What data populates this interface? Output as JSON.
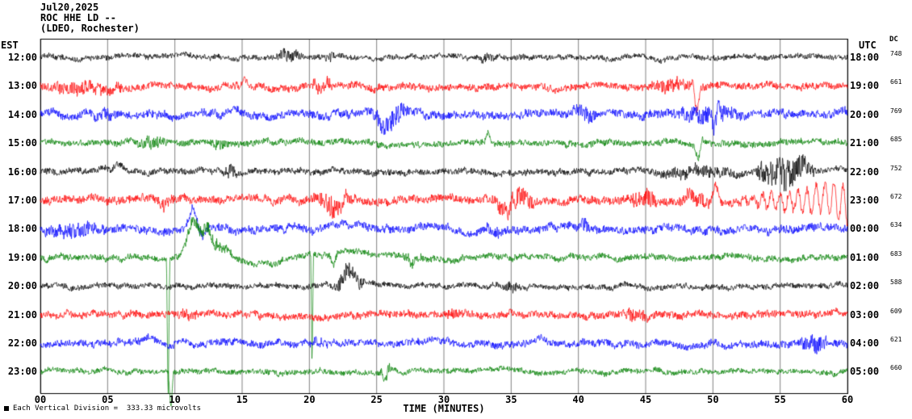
{
  "header": {
    "date": "Jul20,2025",
    "station": "ROC HHE LD --",
    "location": "(LDEO, Rochester)"
  },
  "axes": {
    "left_label": "EST",
    "right_label": "UTC",
    "dc_label": "DC",
    "x_title": "TIME (MINUTES)",
    "x_ticks": [
      "00",
      "05",
      "10",
      "15",
      "20",
      "25",
      "30",
      "35",
      "40",
      "45",
      "50",
      "55",
      "60"
    ]
  },
  "footer": {
    "note": "Each Vertical Division =  333.33 microvolts"
  },
  "chart_data": {
    "type": "line",
    "x_range": [
      0,
      60
    ],
    "x_unit": "minutes",
    "grid": true,
    "grid_color": "#808080",
    "border_color": "#000000",
    "background": "#ffffff",
    "color_cycle": [
      "#000000",
      "#ff0000",
      "#0000ff",
      "#008000"
    ],
    "rows": [
      {
        "est": "12:00",
        "utc": "18:00",
        "dc": "748",
        "color": "#000000",
        "base": 3,
        "bursts": [
          {
            "t0": 17.3,
            "t1": 19.8,
            "amp": 4
          },
          {
            "t0": 21,
            "t1": 22,
            "amp": 2.5
          },
          {
            "t0": 32.5,
            "t1": 34,
            "amp": 3
          }
        ],
        "spikes": [],
        "humps": [],
        "sines": []
      },
      {
        "est": "13:00",
        "utc": "19:00",
        "dc": "661",
        "color": "#ff0000",
        "base": 4,
        "bursts": [
          {
            "t0": 0,
            "t1": 6.5,
            "amp": 4
          },
          {
            "t0": 20,
            "t1": 22,
            "amp": 4
          },
          {
            "t0": 45,
            "t1": 49,
            "amp": 4
          }
        ],
        "spikes": [
          {
            "t": 15.2,
            "amp": 13,
            "w": 0.35
          },
          {
            "t": 48.4,
            "amp": 10,
            "w": 0.3
          },
          {
            "t": 48.8,
            "amp": -30,
            "w": 0.3
          }
        ],
        "humps": [],
        "sines": []
      },
      {
        "est": "14:00",
        "utc": "20:00",
        "dc": "769",
        "color": "#0000ff",
        "base": 4.5,
        "bursts": [
          {
            "t0": 3.5,
            "t1": 6,
            "amp": 3
          },
          {
            "t0": 24.5,
            "t1": 27.5,
            "amp": 8
          },
          {
            "t0": 39.5,
            "t1": 41.5,
            "amp": 5
          },
          {
            "t0": 47,
            "t1": 52.5,
            "amp": 6
          }
        ],
        "spikes": [
          {
            "t": 50.1,
            "amp": -24,
            "w": 0.3
          },
          {
            "t": 50.4,
            "amp": 14,
            "w": 0.3
          }
        ],
        "humps": [],
        "sines": []
      },
      {
        "est": "15:00",
        "utc": "21:00",
        "dc": "685",
        "color": "#008000",
        "base": 3.5,
        "bursts": [
          {
            "t0": 7,
            "t1": 9.5,
            "amp": 4
          },
          {
            "t0": 12.5,
            "t1": 14,
            "amp": 3
          }
        ],
        "spikes": [
          {
            "t": 8,
            "amp": 13,
            "w": 0.25
          },
          {
            "t": 33.3,
            "amp": 14,
            "w": 0.25
          },
          {
            "t": 48.9,
            "amp": -20,
            "w": 0.3
          },
          {
            "t": 49.2,
            "amp": 9,
            "w": 0.3
          }
        ],
        "humps": [],
        "sines": []
      },
      {
        "est": "16:00",
        "utc": "22:00",
        "dc": "752",
        "color": "#000000",
        "base": 3.5,
        "bursts": [
          {
            "t0": 13.5,
            "t1": 14.8,
            "amp": 4
          },
          {
            "t0": 45,
            "t1": 52.5,
            "amp": 4
          },
          {
            "t0": 52.8,
            "t1": 57.8,
            "amp": 15
          }
        ],
        "spikes": [
          {
            "t": 14.2,
            "amp": 9,
            "w": 0.3
          },
          {
            "t": 55,
            "amp": 14,
            "w": 0.4
          }
        ],
        "humps": [
          {
            "t": 5.9,
            "amp": 8,
            "w": 0.5
          }
        ],
        "sines": []
      },
      {
        "est": "17:00",
        "utc": "23:00",
        "dc": "672",
        "color": "#ff0000",
        "base": 4.5,
        "bursts": [
          {
            "t0": 8.5,
            "t1": 10,
            "amp": 3
          },
          {
            "t0": 20,
            "t1": 23.2,
            "amp": 9
          },
          {
            "t0": 33.5,
            "t1": 37,
            "amp": 9
          },
          {
            "t0": 43.5,
            "t1": 46.2,
            "amp": 7
          },
          {
            "t0": 47.5,
            "t1": 50,
            "amp": 5
          }
        ],
        "spikes": [
          {
            "t": 50.2,
            "amp": 20,
            "w": 0.4
          }
        ],
        "humps": [],
        "sines": [
          {
            "t0": 49.5,
            "t1": 60,
            "amp": 24,
            "freq": 1.5
          }
        ]
      },
      {
        "est": "18:00",
        "utc": "00:00",
        "dc": "634",
        "color": "#0000ff",
        "base": 4.5,
        "bursts": [
          {
            "t0": 0,
            "t1": 5,
            "amp": 5
          },
          {
            "t0": 33,
            "t1": 34.5,
            "amp": 3
          },
          {
            "t0": 40,
            "t1": 41,
            "amp": 3
          }
        ],
        "spikes": [
          {
            "t": 11.3,
            "amp": 26,
            "w": 0.5
          },
          {
            "t": 12.1,
            "amp": -10,
            "w": 0.4
          }
        ],
        "humps": [],
        "sines": []
      },
      {
        "est": "19:00",
        "utc": "01:00",
        "dc": "683",
        "color": "#008000",
        "base": 3.5,
        "bursts": [
          {
            "t0": 10.3,
            "t1": 14.5,
            "amp": 5
          },
          {
            "t0": 26.5,
            "t1": 28.5,
            "amp": 3
          }
        ],
        "spikes": [
          {
            "t": 9.5,
            "amp": -180,
            "w": 0.12
          },
          {
            "t": 20.2,
            "amp": -140,
            "w": 0.1
          },
          {
            "t": 21.8,
            "amp": -15,
            "w": 0.3
          },
          {
            "t": 27.6,
            "amp": -11,
            "w": 0.25
          }
        ],
        "humps": [
          {
            "t": 11.4,
            "amp": 40,
            "w": 0.6
          },
          {
            "t": 12.4,
            "amp": 28,
            "w": 0.5
          },
          {
            "t": 13.6,
            "amp": 12,
            "w": 0.8
          },
          {
            "t": 16.5,
            "amp": -6,
            "w": 2.5
          },
          {
            "t": 23,
            "amp": 6,
            "w": 2.5
          }
        ],
        "sines": []
      },
      {
        "est": "20:00",
        "utc": "02:00",
        "dc": "588",
        "color": "#000000",
        "base": 3,
        "bursts": [
          {
            "t0": 21.7,
            "t1": 24.2,
            "amp": 8
          },
          {
            "t0": 34.3,
            "t1": 35.8,
            "amp": 3
          }
        ],
        "spikes": [],
        "humps": [],
        "sines": []
      },
      {
        "est": "21:00",
        "utc": "03:00",
        "dc": "609",
        "color": "#ff0000",
        "base": 4,
        "bursts": [
          {
            "t0": 10,
            "t1": 12,
            "amp": 2.5
          },
          {
            "t0": 30,
            "t1": 31.5,
            "amp": 2.5
          },
          {
            "t0": 43,
            "t1": 45.5,
            "amp": 4
          }
        ],
        "spikes": [],
        "humps": [],
        "sines": []
      },
      {
        "est": "22:00",
        "utc": "04:00",
        "dc": "621",
        "color": "#0000ff",
        "base": 4,
        "bursts": [
          {
            "t0": 20,
            "t1": 21.5,
            "amp": 2.5
          },
          {
            "t0": 56.3,
            "t1": 58.8,
            "amp": 6
          }
        ],
        "spikes": [
          {
            "t": 57.6,
            "amp": -9,
            "w": 0.4
          }
        ],
        "humps": [],
        "sines": []
      },
      {
        "est": "23:00",
        "utc": "05:00",
        "dc": "660",
        "color": "#008000",
        "base": 3,
        "bursts": [
          {
            "t0": 25.2,
            "t1": 26.2,
            "amp": 3
          }
        ],
        "spikes": [
          {
            "t": 9.7,
            "amp": -45,
            "w": 0.2
          },
          {
            "t": 25.6,
            "amp": -14,
            "w": 0.25
          }
        ],
        "humps": [],
        "sines": []
      }
    ]
  }
}
